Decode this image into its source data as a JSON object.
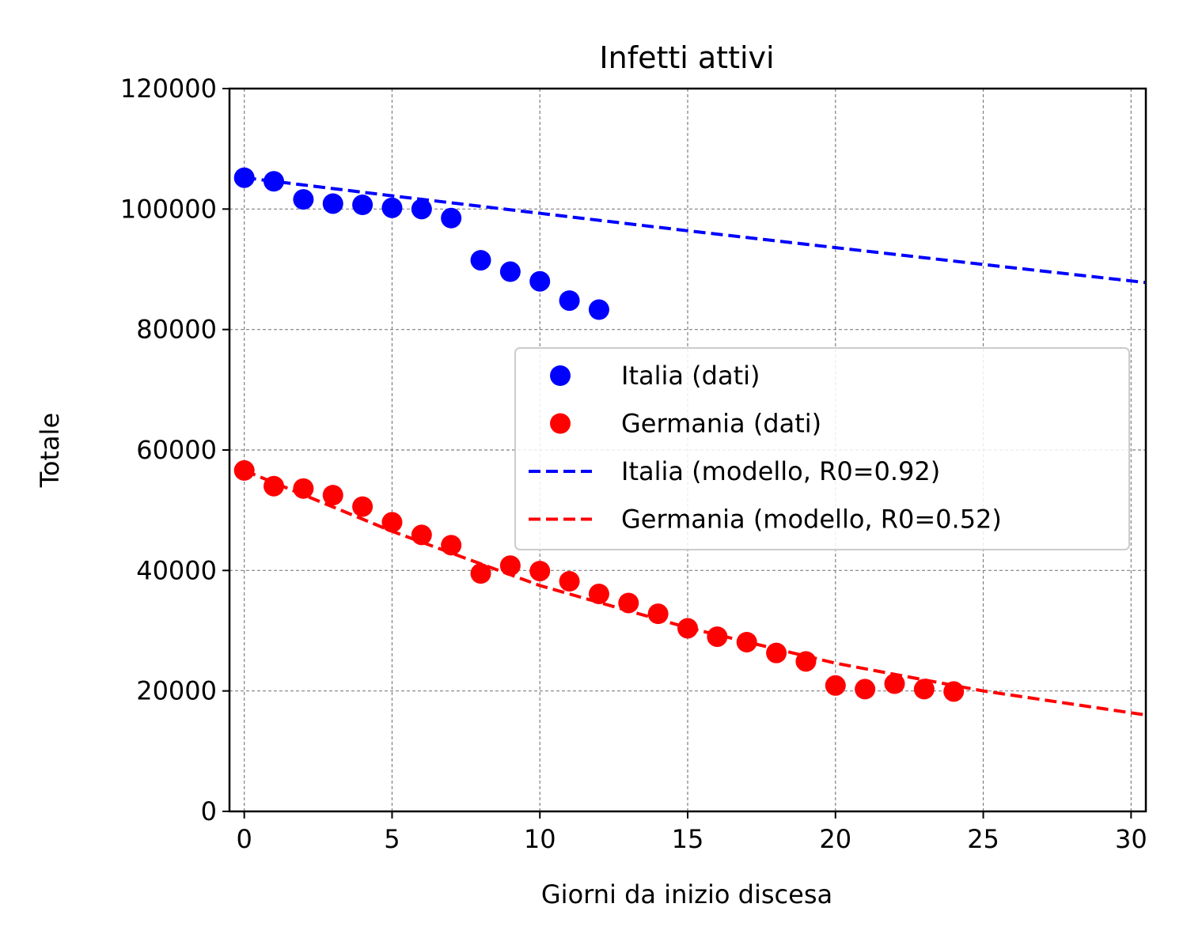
{
  "chart_data": {
    "type": "scatter",
    "title": "Infetti attivi",
    "xlabel": "Giorni da inizio discesa",
    "ylabel": "Totale",
    "xlim": [
      -0.5,
      30.5
    ],
    "ylim": [
      0,
      120000
    ],
    "xticks": [
      0,
      5,
      10,
      15,
      20,
      25,
      30
    ],
    "yticks": [
      0,
      20000,
      40000,
      60000,
      80000,
      100000,
      120000
    ],
    "grid": true,
    "legend_position": "center-right",
    "series": [
      {
        "name": "Italia (dati)",
        "kind": "points",
        "color": "#0000ff",
        "x": [
          0,
          1,
          2,
          3,
          4,
          5,
          6,
          7,
          8,
          9,
          10,
          11,
          12
        ],
        "y": [
          105200,
          104600,
          101600,
          100900,
          100700,
          100200,
          100000,
          98500,
          91500,
          89600,
          88000,
          84800,
          83300
        ]
      },
      {
        "name": "Germania (dati)",
        "kind": "points",
        "color": "#ff0000",
        "x": [
          0,
          1,
          2,
          3,
          4,
          5,
          6,
          7,
          8,
          9,
          10,
          11,
          12,
          13,
          14,
          15,
          16,
          17,
          18,
          19,
          20,
          21,
          22,
          23,
          24
        ],
        "y": [
          56600,
          54000,
          53600,
          52500,
          50600,
          48000,
          45900,
          44200,
          39500,
          40800,
          39900,
          38200,
          36100,
          34600,
          32800,
          30400,
          29000,
          28100,
          26300,
          24900,
          20900,
          20300,
          21200,
          20300,
          19900
        ]
      },
      {
        "name": "Italia (modello, R0=0.92)",
        "kind": "line",
        "dashed": true,
        "color": "#0000ff",
        "x": [
          0,
          5,
          10,
          15,
          20,
          25,
          30.5
        ],
        "y": [
          105200,
          102200,
          99300,
          96400,
          93600,
          90800,
          87800
        ]
      },
      {
        "name": "Germania (modello, R0=0.52)",
        "kind": "line",
        "dashed": true,
        "color": "#ff0000",
        "x": [
          0,
          5,
          10,
          15,
          20,
          25,
          30.5
        ],
        "y": [
          56600,
          46500,
          37500,
          30500,
          24600,
          20000,
          16000
        ]
      }
    ]
  }
}
